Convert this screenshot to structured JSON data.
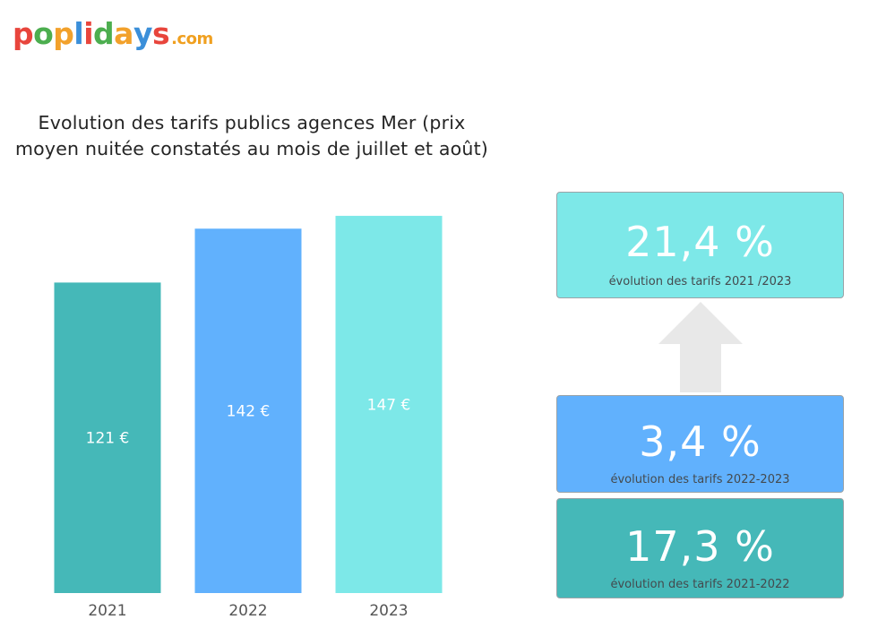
{
  "brand": {
    "logo_text": "poplidays",
    "logo_suffix": ".com",
    "logo_letter_colors": [
      "#e8453c",
      "#4cae4f",
      "#f2a12b",
      "#3b8fd9",
      "#e8453c",
      "#4cae4f",
      "#f2a12b",
      "#3b8fd9",
      "#e8453c"
    ]
  },
  "chart_data": {
    "type": "bar",
    "title": "Evolution des tarifs publics agences Mer (prix moyen nuitée constatés au mois de juillet et août)",
    "title_lines": [
      "Evolution des tarifs publics agences Mer (prix",
      "moyen nuitée constatés au mois de juillet et août)"
    ],
    "categories": [
      "2021",
      "2022",
      "2023"
    ],
    "values": [
      121,
      142,
      147
    ],
    "data_labels": [
      "121 €",
      "142 €",
      "147 €"
    ],
    "colors": [
      "#45b8b8",
      "#61b1fd",
      "#7de8e8"
    ],
    "unit": "€",
    "ylim": [
      0,
      155
    ],
    "grid": false,
    "xlabel": "",
    "ylabel": ""
  },
  "kpis": [
    {
      "value": "21,4 %",
      "caption": "évolution des tarifs 2021 /2023",
      "color": "#7de8e8"
    },
    {
      "value": "3,4 %",
      "caption": "évolution des tarifs 2022-2023",
      "color": "#61b1fd"
    },
    {
      "value": "17,3 %",
      "caption": "évolution des tarifs 2021-2022",
      "color": "#45b8b8"
    }
  ],
  "arrow_color": "#e8e8e8"
}
